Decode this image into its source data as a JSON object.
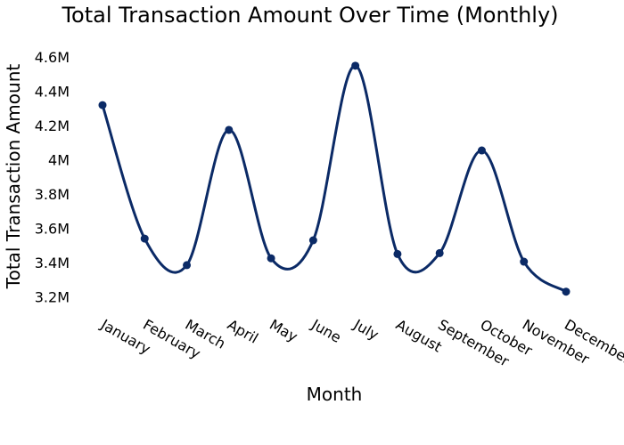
{
  "chart_data": {
    "type": "line",
    "title": "Total Transaction Amount Over Time (Monthly)",
    "xlabel": "Month",
    "ylabel": "Total Transaction Amount",
    "categories": [
      "January",
      "February",
      "March",
      "April",
      "May",
      "June",
      "July",
      "August",
      "September",
      "October",
      "November",
      "December"
    ],
    "series": [
      {
        "values": [
          4320000,
          3540000,
          3385000,
          4175000,
          3425000,
          3530000,
          4550000,
          3450000,
          3455000,
          4055000,
          3405000,
          3230000
        ],
        "color": "#0b2a66"
      }
    ],
    "ylim": [
      3140000,
      4700000
    ],
    "yticks": [
      3200000,
      3400000,
      3600000,
      3800000,
      4000000,
      4200000,
      4400000,
      4600000
    ],
    "ytick_labels": [
      "3.2M",
      "3.4M",
      "3.6M",
      "3.8M",
      "4M",
      "4.2M",
      "4.4M",
      "4.6M"
    ],
    "grid": false,
    "line_shape": "smooth spline",
    "markers": true
  }
}
